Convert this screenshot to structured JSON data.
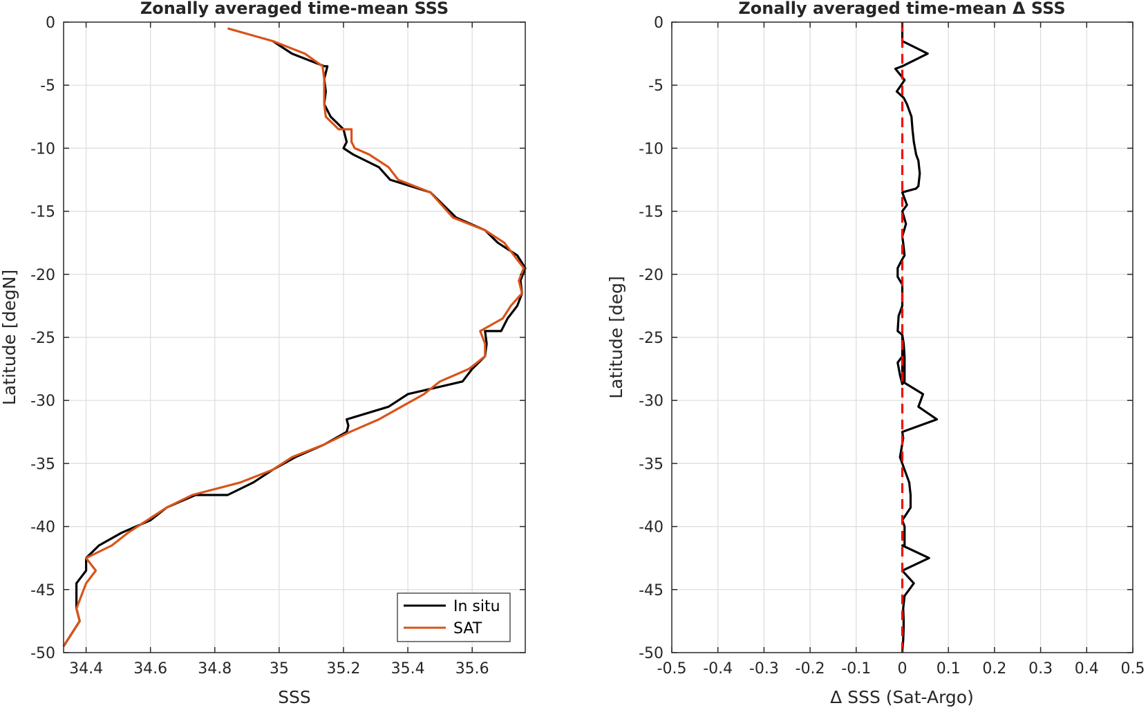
{
  "chart_data": [
    {
      "type": "line",
      "title": "Zonally averaged time-mean SSS",
      "xlabel": "SSS",
      "ylabel": "Latitude [degN]",
      "xlim": [
        34.33,
        35.765
      ],
      "ylim": [
        -50,
        0
      ],
      "xticks": [
        34.4,
        34.6,
        34.8,
        35,
        35.2,
        35.4,
        35.6
      ],
      "xtick_labels": [
        "34.4",
        "34.6",
        "34.8",
        "35",
        "35.2",
        "35.4",
        "35.6"
      ],
      "yticks": [
        0,
        -5,
        -10,
        -15,
        -20,
        -25,
        -30,
        -35,
        -40,
        -45,
        -50
      ],
      "ytick_labels": [
        "0",
        "-5",
        "-10",
        "-15",
        "-20",
        "-25",
        "-30",
        "-35",
        "-40",
        "-45",
        "-50"
      ],
      "grid": true,
      "legend": "bottom-right",
      "series": [
        {
          "name": "In situ",
          "color": "#000000",
          "x": [
            34.98,
            35.04,
            35.14,
            35.15,
            35.14,
            35.145,
            35.14,
            35.16,
            35.2,
            35.21,
            35.2,
            35.23,
            35.31,
            35.345,
            35.47,
            35.51,
            35.55,
            35.64,
            35.68,
            35.74,
            35.765,
            35.75,
            35.755,
            35.74,
            35.71,
            35.69,
            35.64,
            35.645,
            35.64,
            35.6,
            35.57,
            35.4,
            35.34,
            35.21,
            35.215,
            35.21,
            35.14,
            35.05,
            34.98,
            34.92,
            34.84,
            34.74,
            34.65,
            34.6,
            34.51,
            34.44,
            34.4,
            34.4,
            34.37,
            34.37,
            34.38,
            34.33
          ],
          "y": [
            -1.5,
            -2.5,
            -3.5,
            -3.5,
            -4.5,
            -5.5,
            -6.5,
            -7.5,
            -8.5,
            -9.5,
            -10.0,
            -10.5,
            -11.5,
            -12.5,
            -13.5,
            -14.5,
            -15.5,
            -16.5,
            -17.5,
            -18.5,
            -19.5,
            -20.5,
            -21.5,
            -22.5,
            -23.5,
            -24.5,
            -24.5,
            -25.5,
            -26.5,
            -27.5,
            -28.5,
            -29.5,
            -30.5,
            -31.5,
            -32.0,
            -32.5,
            -33.5,
            -34.5,
            -35.5,
            -36.5,
            -37.5,
            -37.5,
            -38.5,
            -39.5,
            -40.5,
            -41.5,
            -42.5,
            -43.5,
            -44.5,
            -46.5,
            -47.5,
            -49.5
          ]
        },
        {
          "name": "SAT",
          "color": "#d95319",
          "x": [
            34.84,
            34.98,
            35.08,
            35.135,
            35.14,
            35.14,
            35.14,
            35.145,
            35.185,
            35.225,
            35.225,
            35.235,
            35.28,
            35.34,
            35.37,
            35.47,
            35.54,
            35.64,
            35.7,
            35.76,
            35.745,
            35.755,
            35.72,
            35.695,
            35.625,
            35.64,
            35.64,
            35.59,
            35.5,
            35.45,
            35.38,
            35.31,
            35.22,
            35.14,
            35.04,
            34.98,
            34.88,
            34.73,
            34.65,
            34.59,
            34.53,
            34.48,
            34.4,
            34.43,
            34.4,
            34.37,
            34.38,
            34.33
          ],
          "y": [
            -0.5,
            -1.5,
            -2.5,
            -3.5,
            -4.5,
            -5.5,
            -6.5,
            -7.5,
            -8.5,
            -8.5,
            -9.5,
            -10.0,
            -10.5,
            -11.5,
            -12.5,
            -13.5,
            -15.5,
            -16.5,
            -17.5,
            -19.5,
            -20.5,
            -21.5,
            -22.5,
            -23.5,
            -24.5,
            -25.5,
            -26.5,
            -27.5,
            -28.5,
            -29.5,
            -30.5,
            -31.5,
            -32.5,
            -33.5,
            -34.5,
            -35.5,
            -36.5,
            -37.5,
            -38.5,
            -39.5,
            -40.5,
            -41.5,
            -42.5,
            -43.5,
            -44.5,
            -46.5,
            -47.5,
            -49.5
          ]
        }
      ]
    },
    {
      "type": "line",
      "title": "Zonally averaged time-mean Δ SSS",
      "xlabel": "Δ SSS (Sat-Argo)",
      "ylabel": "Latitude [deg]",
      "xlim": [
        -0.5,
        0.5
      ],
      "ylim": [
        -50,
        0
      ],
      "xticks": [
        -0.5,
        -0.4,
        -0.3,
        -0.2,
        -0.1,
        0,
        0.1,
        0.2,
        0.3,
        0.4,
        0.5
      ],
      "xtick_labels": [
        "-0.5",
        "-0.4",
        "-0.3",
        "-0.2",
        "-0.1",
        "0",
        "0.1",
        "0.2",
        "0.3",
        "0.4",
        "0.5"
      ],
      "yticks": [
        0,
        -5,
        -10,
        -15,
        -20,
        -25,
        -30,
        -35,
        -40,
        -45,
        -50
      ],
      "ytick_labels": [
        "0",
        "-5",
        "-10",
        "-15",
        "-20",
        "-25",
        "-30",
        "-35",
        "-40",
        "-45",
        "-50"
      ],
      "grid": true,
      "series": [
        {
          "color": "#000000",
          "x": [
            0.0,
            0.0,
            0.055,
            0.0,
            -0.015,
            0.005,
            -0.012,
            0.003,
            0.01,
            0.02,
            0.022,
            0.025,
            0.03,
            0.035,
            0.038,
            0.035,
            0.03,
            0.0,
            0.01,
            0.0,
            0.008,
            0.0,
            0.002,
            0.005,
            0.0,
            -0.01,
            -0.01,
            0.0,
            0.0,
            0.0,
            -0.008,
            -0.01,
            0.0,
            0.002,
            0.0,
            -0.01,
            -0.005,
            0.0,
            0.005,
            0.005,
            0.003,
            0.0,
            0.0,
            0.045,
            0.035,
            0.075,
            0.0,
            0.002,
            -0.005,
            0.005,
            0.015,
            0.018,
            0.018,
            0.0,
            0.005,
            0.005,
            0.005,
            0.0,
            0.058,
            0.0,
            0.025,
            0.005,
            0.002,
            0.003,
            0.003,
            0.002,
            0.0
          ],
          "y": [
            0.0,
            -1.5,
            -2.5,
            -3.5,
            -3.7,
            -4.6,
            -5.5,
            -6.0,
            -6.5,
            -7.5,
            -8.5,
            -9.5,
            -10.5,
            -11.0,
            -12.0,
            -13.0,
            -13.2,
            -13.5,
            -14.5,
            -15.0,
            -16.0,
            -17.0,
            -17.5,
            -18.5,
            -18.8,
            -19.5,
            -20.2,
            -20.8,
            -21.5,
            -22.5,
            -23.3,
            -24.5,
            -24.8,
            -25.5,
            -26.5,
            -27.0,
            -28.0,
            -28.7,
            -28.5,
            -26.5,
            -25.5,
            -24.8,
            -28.5,
            -29.5,
            -30.5,
            -31.5,
            -32.5,
            -33.0,
            -34.5,
            -35.5,
            -36.5,
            -37.5,
            -38.5,
            -39.5,
            -40.0,
            -40.5,
            -41.5,
            -41.5,
            -42.5,
            -43.5,
            -44.5,
            -45.5,
            -46.5,
            -47.5,
            -48.0,
            -49.0,
            -50.0
          ]
        }
      ],
      "reference_line": {
        "x": 0,
        "style": "dashed",
        "color": "#ff0000"
      }
    }
  ],
  "legend": {
    "items": [
      {
        "label": "In situ",
        "color": "#000000"
      },
      {
        "label": "SAT",
        "color": "#d95319"
      }
    ]
  }
}
